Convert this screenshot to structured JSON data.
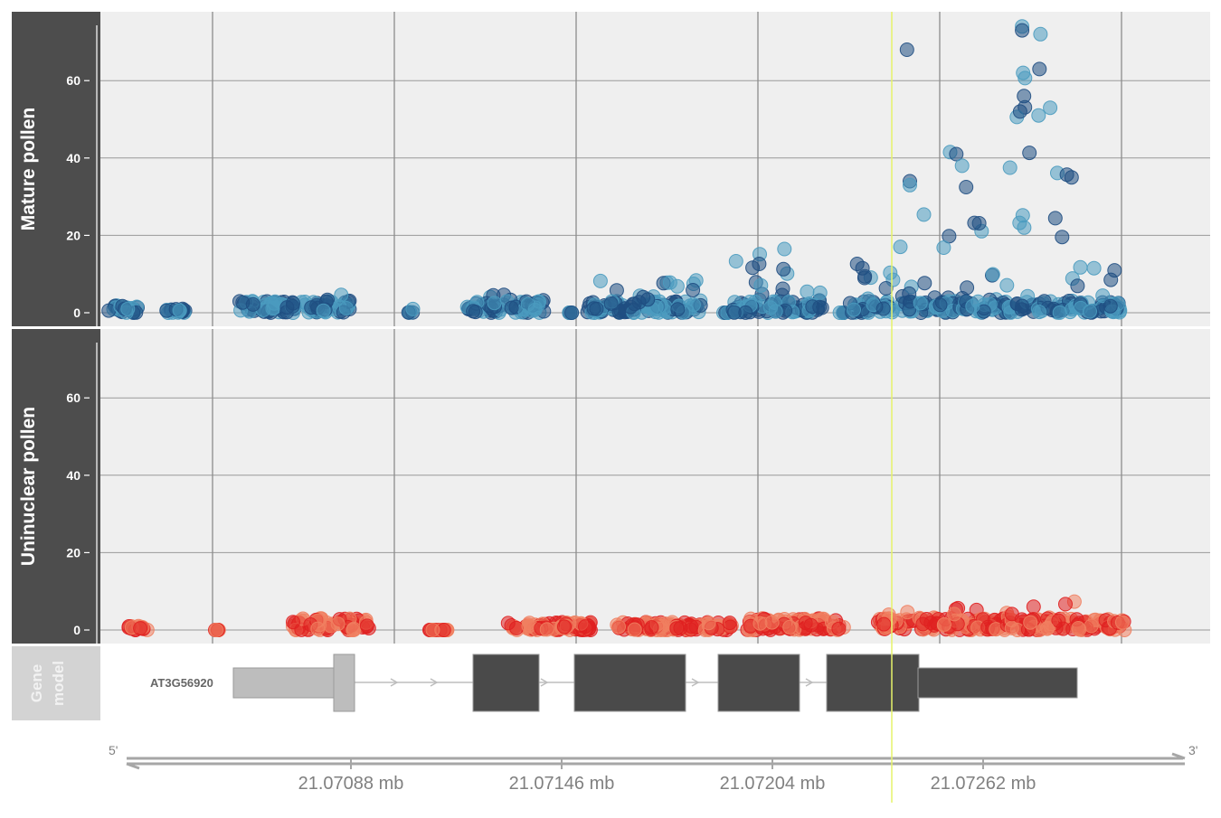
{
  "chart_data": {
    "type": "scatter",
    "tracks": [
      {
        "name": "Mature pollen",
        "y_ticks": [
          "0",
          "20",
          "40",
          "60"
        ],
        "ylim": [
          -2,
          75
        ],
        "colors": [
          "#4a9bbf",
          "#1f4e82"
        ],
        "clusters": [
          {
            "x0": 0.0,
            "x1": 0.03,
            "max": 2
          },
          {
            "x0": 0.06,
            "x1": 0.08,
            "max": 1
          },
          {
            "x0": 0.135,
            "x1": 0.25,
            "max": 5
          },
          {
            "x0": 0.31,
            "x1": 0.315,
            "max": 1
          },
          {
            "x0": 0.37,
            "x1": 0.45,
            "max": 5
          },
          {
            "x0": 0.475,
            "x1": 0.48,
            "max": 0
          },
          {
            "x0": 0.495,
            "x1": 0.615,
            "max": 10
          },
          {
            "x0": 0.635,
            "x1": 0.64,
            "max": 0
          },
          {
            "x0": 0.645,
            "x1": 0.74,
            "max": 20
          },
          {
            "x0": 0.755,
            "x1": 0.76,
            "max": 0
          },
          {
            "x0": 0.765,
            "x1": 0.82,
            "max": 18
          },
          {
            "x0": 0.82,
            "x1": 0.88,
            "max": 42
          },
          {
            "x0": 0.88,
            "x1": 0.93,
            "max": 35
          },
          {
            "x0": 0.93,
            "x1": 0.96,
            "max": 74
          },
          {
            "x0": 0.96,
            "x1": 1.0,
            "max": 55
          },
          {
            "x0": 1.0,
            "x1": 1.05,
            "max": 12
          }
        ],
        "outliers": [
          {
            "x": 0.825,
            "y": 68
          },
          {
            "x": 0.944,
            "y": 74
          },
          {
            "x": 0.944,
            "y": 73
          },
          {
            "x": 0.963,
            "y": 72
          },
          {
            "x": 0.962,
            "y": 63
          },
          {
            "x": 0.945,
            "y": 62
          },
          {
            "x": 0.946,
            "y": 56
          },
          {
            "x": 0.973,
            "y": 53
          },
          {
            "x": 0.942,
            "y": 52
          },
          {
            "x": 0.961,
            "y": 51
          },
          {
            "x": 0.876,
            "y": 41
          },
          {
            "x": 0.882,
            "y": 38
          },
          {
            "x": 0.828,
            "y": 34
          },
          {
            "x": 0.828,
            "y": 33
          }
        ]
      },
      {
        "name": "Uninuclear pollen",
        "y_ticks": [
          "0",
          "20",
          "40",
          "60"
        ],
        "ylim": [
          -2,
          75
        ],
        "colors": [
          "#f08060",
          "#e02020"
        ],
        "clusters": [
          {
            "x0": 0.02,
            "x1": 0.04,
            "max": 1
          },
          {
            "x0": 0.11,
            "x1": 0.115,
            "max": 0
          },
          {
            "x0": 0.19,
            "x1": 0.27,
            "max": 3
          },
          {
            "x0": 0.33,
            "x1": 0.35,
            "max": 0
          },
          {
            "x0": 0.41,
            "x1": 0.5,
            "max": 2
          },
          {
            "x0": 0.525,
            "x1": 0.645,
            "max": 2
          },
          {
            "x0": 0.66,
            "x1": 0.76,
            "max": 3
          },
          {
            "x0": 0.795,
            "x1": 0.86,
            "max": 5
          },
          {
            "x0": 0.86,
            "x1": 0.93,
            "max": 7
          },
          {
            "x0": 0.93,
            "x1": 1.0,
            "max": 8
          },
          {
            "x0": 1.0,
            "x1": 1.05,
            "max": 3
          }
        ],
        "outliers": []
      }
    ],
    "gene_model": {
      "strip_label_line1": "Gene",
      "strip_label_line2": "model",
      "gene_name": "AT3G56920"
    },
    "x_axis": {
      "labels": [
        "21.07088 mb",
        "21.07146 mb",
        "21.07204 mb",
        "21.07262 mb"
      ],
      "five_prime": "5'",
      "three_prime": "3'"
    },
    "colors": {
      "panel_bg": "#efefef",
      "strip_bg": "#4d4d4d",
      "gene_strip_bg": "#d3d3d3",
      "grid_major": "#8c8c8c",
      "grid_minor": "#9a9a9a",
      "highlight_line": "#e6f36a",
      "exon_utr": "#bdbdbd",
      "exon_cds": "#4a4a4a"
    }
  }
}
